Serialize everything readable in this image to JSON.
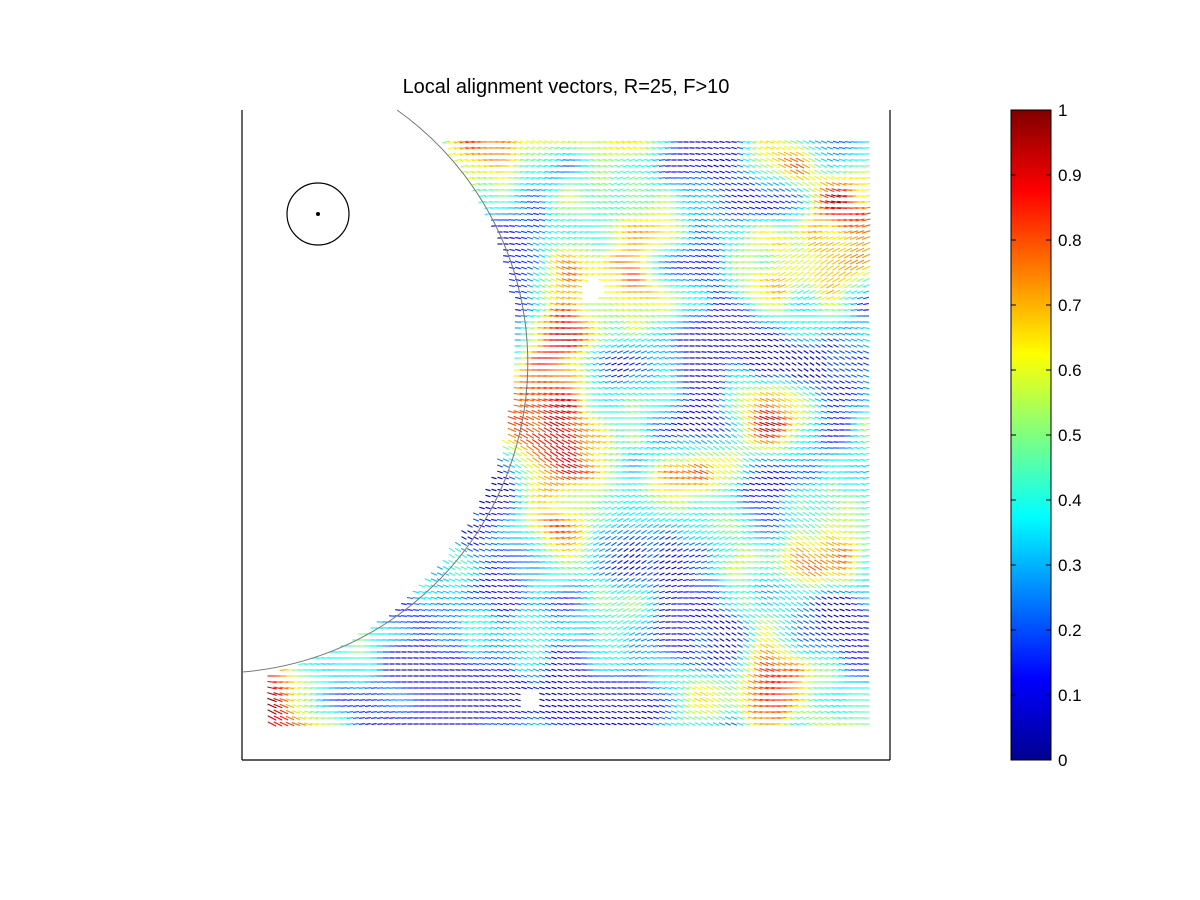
{
  "chart_data": {
    "type": "quiver",
    "title": "Local alignment vectors, R=25, F>10",
    "xlabel": "",
    "ylabel": "",
    "grid": false,
    "field": {
      "description_of_visual": "",
      "region_excluded": "large circular arc occupying left side of plot"
    },
    "marker": {
      "type": "circle-with-center-dot"
    },
    "colorbar": {
      "colormap": "jet",
      "range": [
        0,
        1
      ],
      "ticks": [
        "0",
        "0.1",
        "0.2",
        "0.3",
        "0.4",
        "0.5",
        "0.6",
        "0.7",
        "0.8",
        "0.9",
        "1"
      ],
      "placement": "right"
    }
  }
}
